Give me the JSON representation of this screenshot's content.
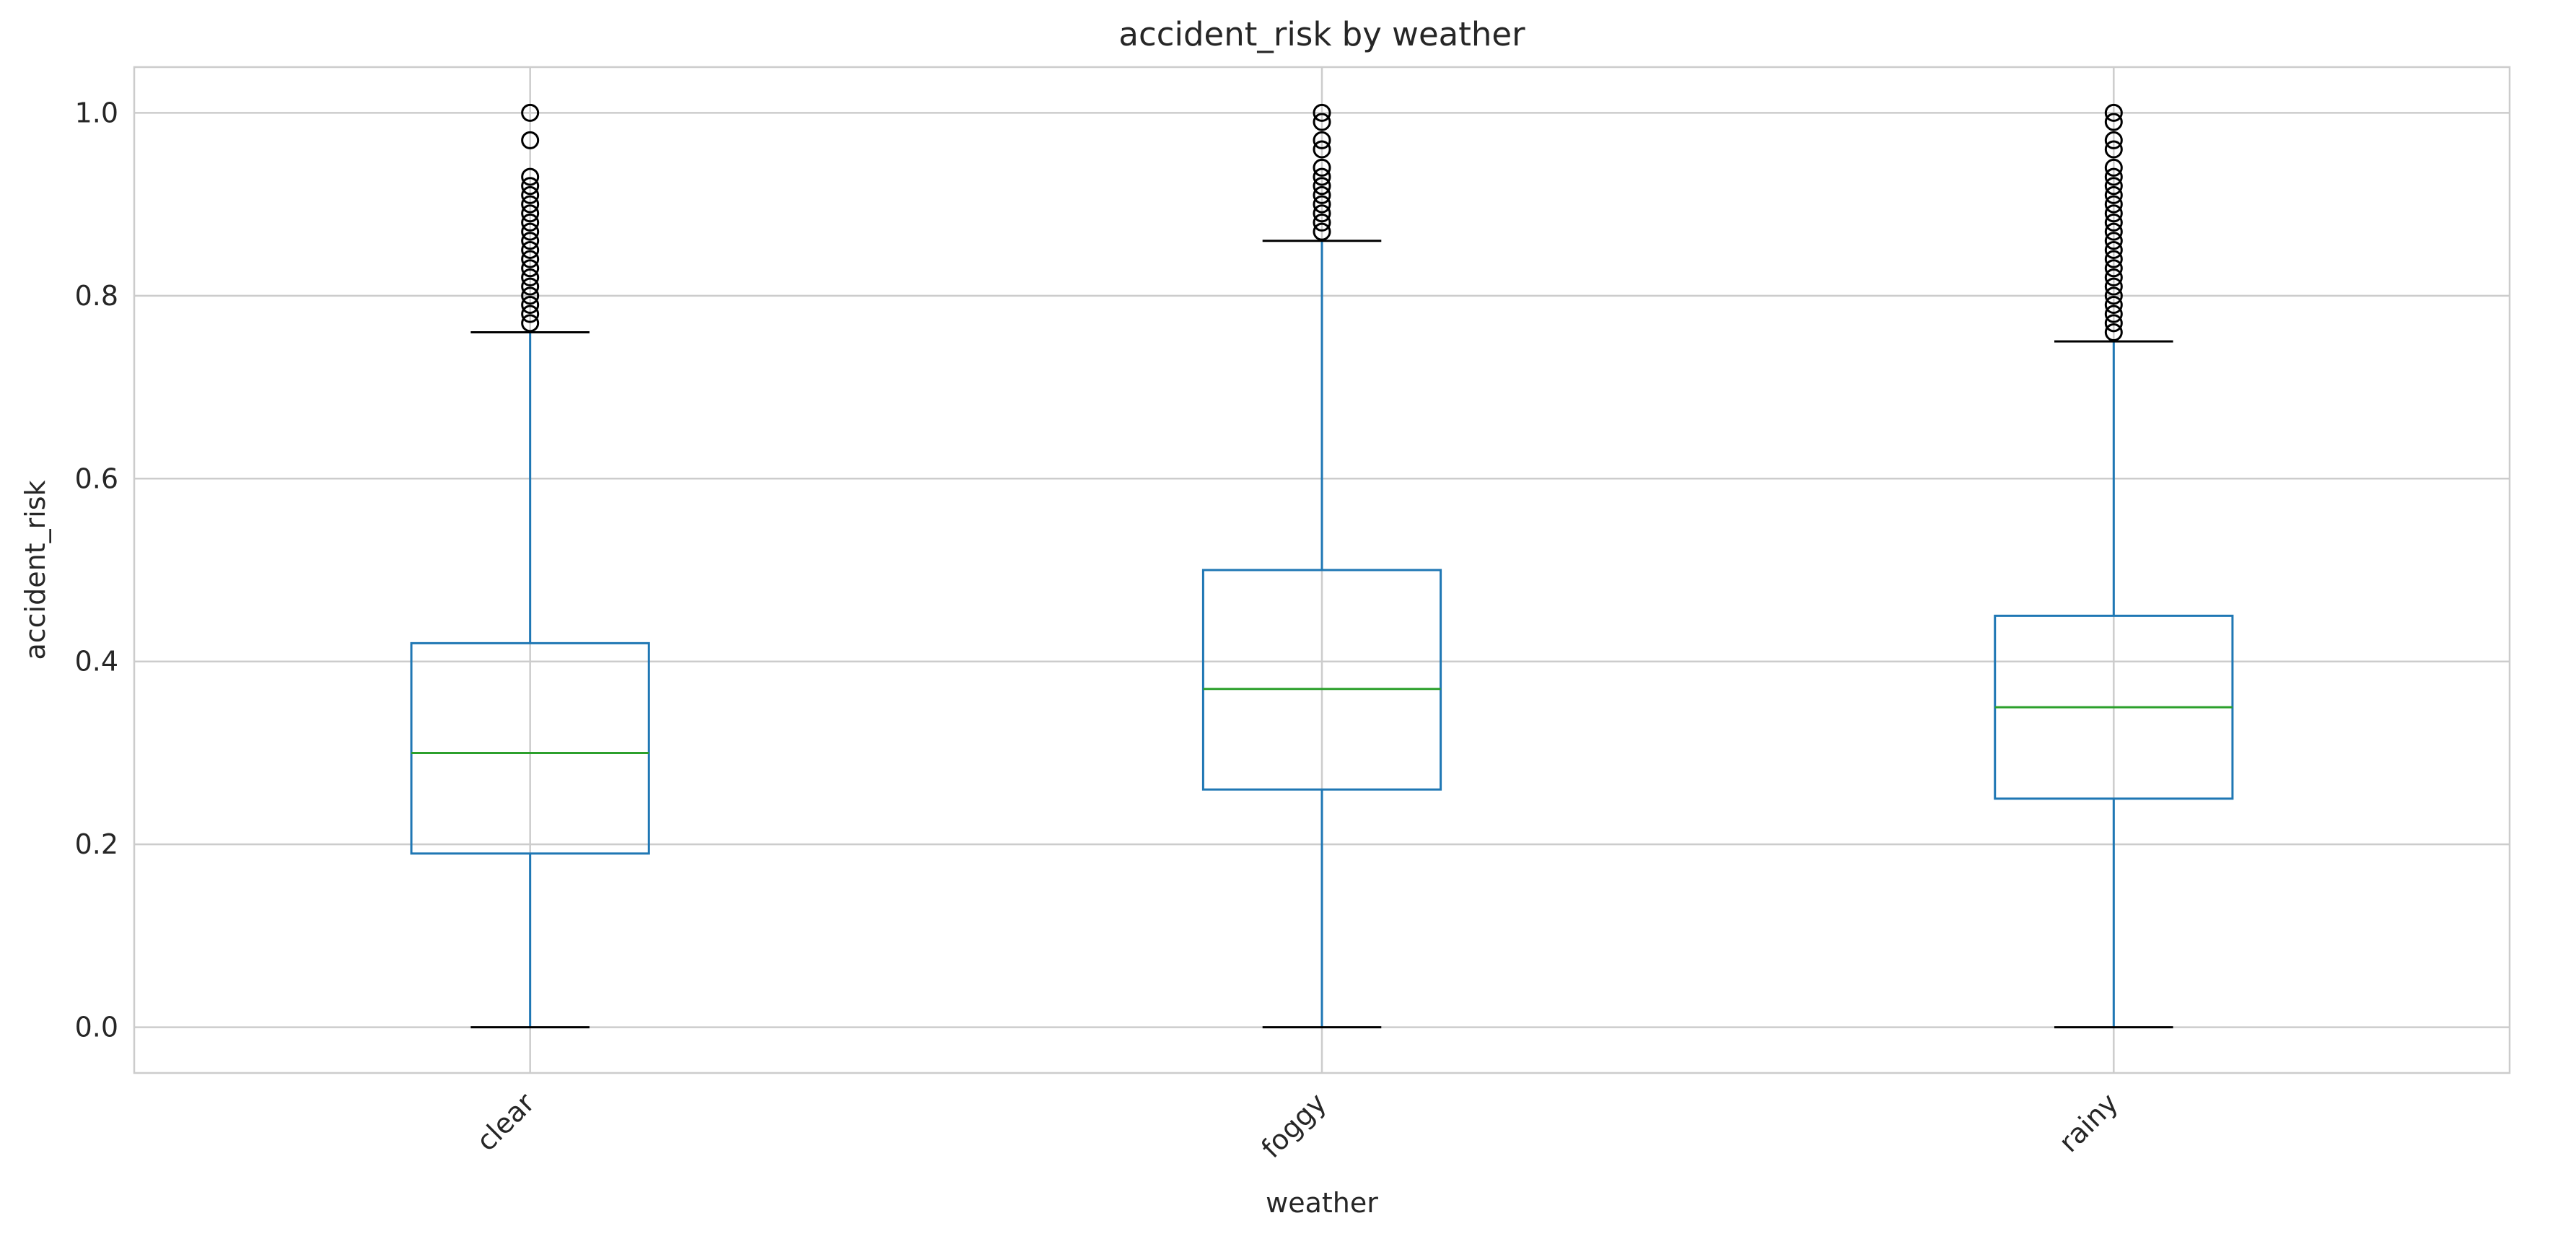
{
  "chart_data": {
    "type": "box",
    "title": "accident_risk by weather",
    "xlabel": "weather",
    "ylabel": "accident_risk",
    "ylim": [
      -0.05,
      1.05
    ],
    "yticks": [
      0.0,
      0.2,
      0.4,
      0.6,
      0.8,
      1.0
    ],
    "ytick_labels": [
      "0.0",
      "0.2",
      "0.4",
      "0.6",
      "0.8",
      "1.0"
    ],
    "grid": true,
    "categories": [
      "clear",
      "foggy",
      "rainy"
    ],
    "boxes": [
      {
        "category": "clear",
        "whisker_low": 0.0,
        "q1": 0.19,
        "median": 0.3,
        "q3": 0.42,
        "whisker_high": 0.76,
        "outliers": [
          0.77,
          0.78,
          0.79,
          0.8,
          0.81,
          0.82,
          0.83,
          0.84,
          0.85,
          0.86,
          0.87,
          0.88,
          0.89,
          0.9,
          0.91,
          0.92,
          0.93,
          0.97,
          1.0
        ]
      },
      {
        "category": "foggy",
        "whisker_low": 0.0,
        "q1": 0.26,
        "median": 0.37,
        "q3": 0.5,
        "whisker_high": 0.86,
        "outliers": [
          0.87,
          0.88,
          0.89,
          0.9,
          0.91,
          0.92,
          0.93,
          0.94,
          0.96,
          0.97,
          0.99,
          1.0
        ]
      },
      {
        "category": "rainy",
        "whisker_low": 0.0,
        "q1": 0.25,
        "median": 0.35,
        "q3": 0.45,
        "whisker_high": 0.75,
        "outliers": [
          0.76,
          0.77,
          0.78,
          0.79,
          0.8,
          0.81,
          0.82,
          0.83,
          0.84,
          0.85,
          0.86,
          0.87,
          0.88,
          0.89,
          0.9,
          0.91,
          0.92,
          0.93,
          0.94,
          0.96,
          0.97,
          0.99,
          1.0
        ]
      }
    ],
    "colors": {
      "box": "#1f77b4",
      "median": "#2ca02c",
      "whisker_cap": "#000000",
      "outlier": "#000000",
      "grid": "#cccccc",
      "spine": "#cccccc"
    }
  }
}
